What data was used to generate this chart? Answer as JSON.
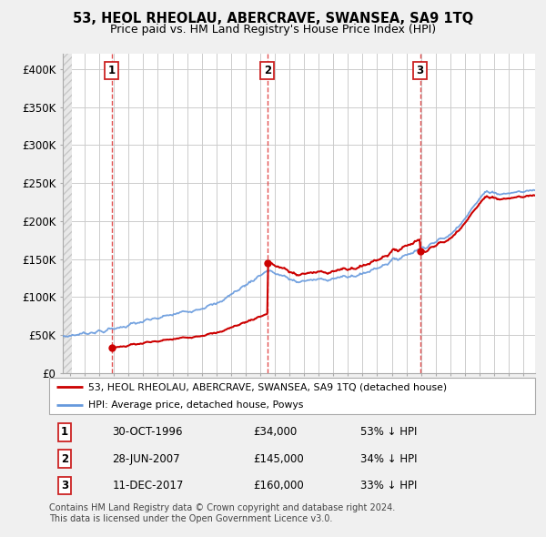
{
  "title": "53, HEOL RHEOLAU, ABERCRAVE, SWANSEA, SA9 1TQ",
  "subtitle": "Price paid vs. HM Land Registry's House Price Index (HPI)",
  "ylabel_ticks": [
    "£0",
    "£50K",
    "£100K",
    "£150K",
    "£200K",
    "£250K",
    "£300K",
    "£350K",
    "£400K"
  ],
  "ytick_values": [
    0,
    50000,
    100000,
    150000,
    200000,
    250000,
    300000,
    350000,
    400000
  ],
  "ylim": [
    0,
    420000
  ],
  "xlim_start": 1993.5,
  "xlim_end": 2025.8,
  "sale_dates": [
    1996.83,
    2007.49,
    2017.94
  ],
  "sale_prices": [
    34000,
    145000,
    160000
  ],
  "sale_labels": [
    "1",
    "2",
    "3"
  ],
  "hpi_color": "#6699DD",
  "price_color": "#CC0000",
  "vline_color": "#DD3333",
  "legend_label_price": "53, HEOL RHEOLAU, ABERCRAVE, SWANSEA, SA9 1TQ (detached house)",
  "legend_label_hpi": "HPI: Average price, detached house, Powys",
  "table_data": [
    [
      "1",
      "30-OCT-1996",
      "£34,000",
      "53% ↓ HPI"
    ],
    [
      "2",
      "28-JUN-2007",
      "£145,000",
      "34% ↓ HPI"
    ],
    [
      "3",
      "11-DEC-2017",
      "£160,000",
      "33% ↓ HPI"
    ]
  ],
  "footnote": "Contains HM Land Registry data © Crown copyright and database right 2024.\nThis data is licensed under the Open Government Licence v3.0.",
  "plot_bg_color": "#ffffff",
  "fig_bg_color": "#f0f0f0",
  "grid_color": "#cccccc"
}
